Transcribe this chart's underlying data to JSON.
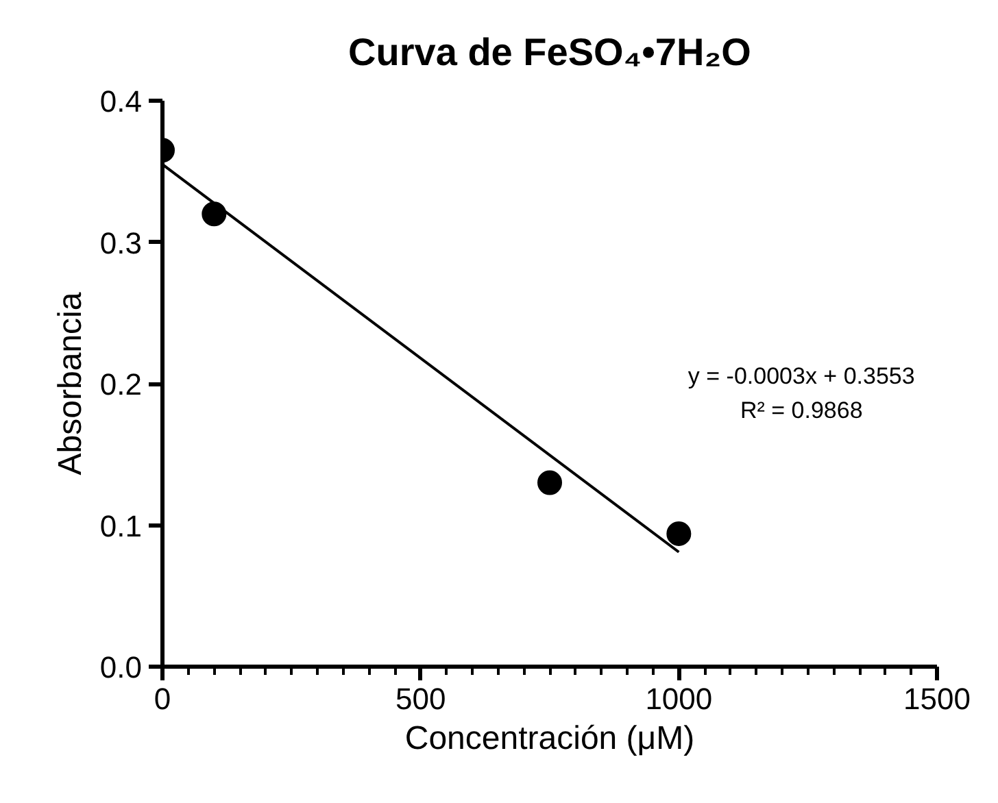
{
  "chart_data": {
    "type": "scatter",
    "title": "Curva de FeSO₄•7H₂O",
    "xlabel": "Concentración (μM)",
    "ylabel": "Absorbancia",
    "x": [
      0,
      100,
      750,
      1000
    ],
    "series": [
      {
        "color": "#000000",
        "values": [
          0.365,
          0.32,
          0.13,
          0.094
        ],
        "marker": "circle"
      },
      {
        "type": "line",
        "color": "#000000",
        "x": [
          0,
          1000
        ],
        "values": [
          0.355,
          0.081
        ],
        "line_style": "solid"
      }
    ],
    "annotations": [
      "y = -0.0003x + 0.3553",
      "R² = 0.9868"
    ],
    "xlim": [
      0,
      1500
    ],
    "ylim": [
      0,
      0.4
    ],
    "xticks": [
      0,
      {
        "value": 50,
        "label": null
      },
      {
        "value": 100,
        "label": null
      },
      {
        "value": 150,
        "label": null
      },
      {
        "value": 200,
        "label": null
      },
      {
        "value": 250,
        "label": null
      },
      {
        "value": 300,
        "label": null
      },
      {
        "value": 350,
        "label": null
      },
      {
        "value": 400,
        "label": null
      },
      {
        "value": 450,
        "label": null
      },
      500,
      {
        "value": 550,
        "label": null
      },
      {
        "value": 600,
        "label": null
      },
      {
        "value": 650,
        "label": null
      },
      {
        "value": 700,
        "label": null
      },
      {
        "value": 750,
        "label": null
      },
      {
        "value": 800,
        "label": null
      },
      {
        "value": 850,
        "label": null
      },
      {
        "value": 900,
        "label": null
      },
      {
        "value": 950,
        "label": null
      },
      1000,
      {
        "value": 1050,
        "label": null
      },
      {
        "value": 1100,
        "label": null
      },
      {
        "value": 1150,
        "label": null
      },
      {
        "value": 1200,
        "label": null
      },
      {
        "value": 1250,
        "label": null
      },
      {
        "value": 1300,
        "label": null
      },
      {
        "value": 1350,
        "label": null
      },
      {
        "value": 1400,
        "label": null
      },
      {
        "value": 1450,
        "label": null
      },
      1500
    ],
    "yticks": [
      {
        "value": 0,
        "label": "0.0"
      },
      0.1,
      0.2,
      0.3,
      0.4
    ],
    "grid": false
  }
}
